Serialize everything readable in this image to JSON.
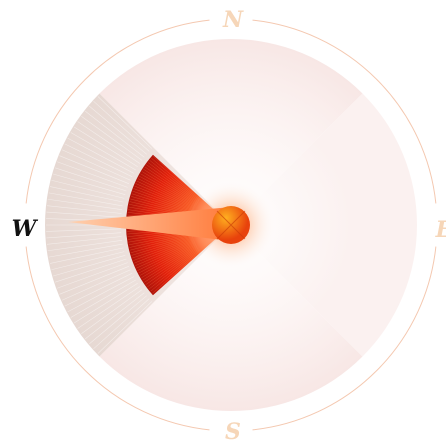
{
  "compass": {
    "labels": {
      "north": "N",
      "east": "E",
      "south": "S",
      "west": "W"
    }
  }
}
